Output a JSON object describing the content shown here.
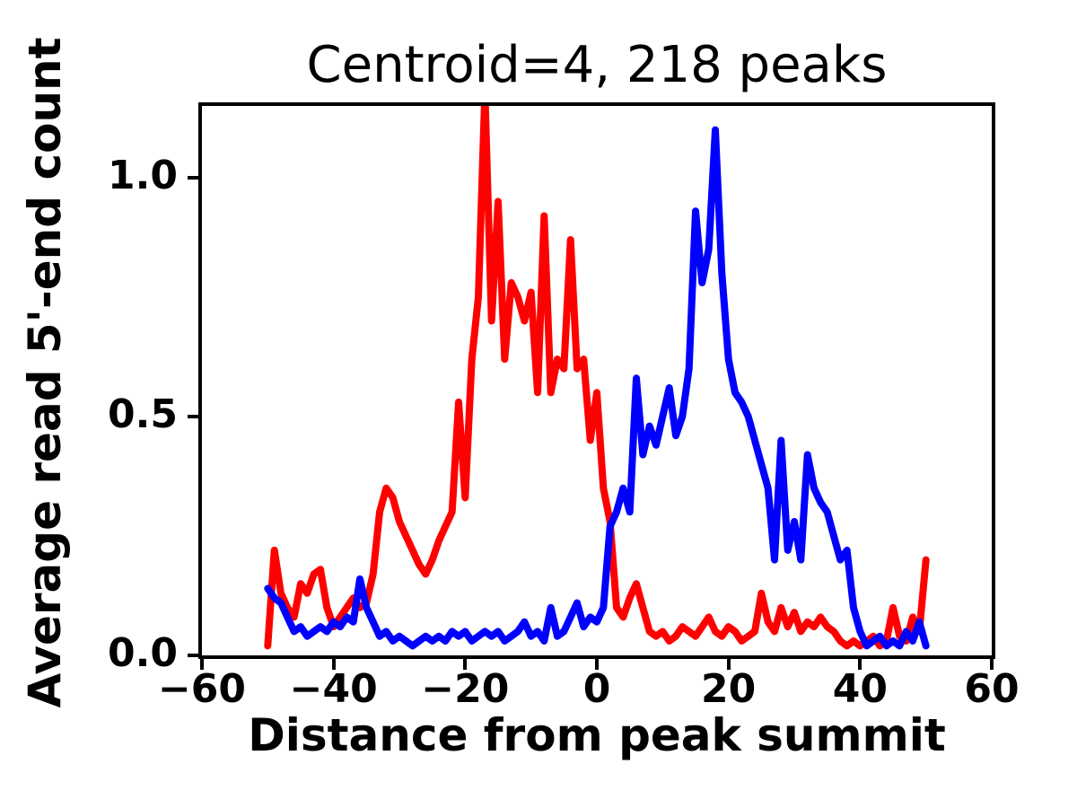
{
  "figure": {
    "background": "#ffffff",
    "spine_color": "#000000"
  },
  "chart_data": {
    "type": "line",
    "title": "Centroid=4, 218 peaks",
    "xlabel": "Distance from peak summit",
    "ylabel": "Average read 5'-end count",
    "xlim": [
      -60,
      60
    ],
    "ylim": [
      0,
      1.15
    ],
    "grid": false,
    "legend": null,
    "line_width": 8,
    "xticks": {
      "values": [
        -60,
        -40,
        -20,
        0,
        20,
        40,
        60
      ],
      "labels": [
        "−60",
        "−40",
        "−20",
        "0",
        "20",
        "40",
        "60"
      ]
    },
    "yticks": {
      "values": [
        0.0,
        0.5,
        1.0
      ],
      "labels": [
        "0.0",
        "0.5",
        "1.0"
      ]
    },
    "x": [
      -50,
      -49,
      -48,
      -47,
      -46,
      -45,
      -44,
      -43,
      -42,
      -41,
      -40,
      -39,
      -38,
      -37,
      -36,
      -35,
      -34,
      -33,
      -32,
      -31,
      -30,
      -29,
      -28,
      -27,
      -26,
      -25,
      -24,
      -23,
      -22,
      -21,
      -20,
      -19,
      -18,
      -17,
      -16,
      -15,
      -14,
      -13,
      -12,
      -11,
      -10,
      -9,
      -8,
      -7,
      -6,
      -5,
      -4,
      -3,
      -2,
      -1,
      0,
      1,
      2,
      3,
      4,
      5,
      6,
      7,
      8,
      9,
      10,
      11,
      12,
      13,
      14,
      15,
      16,
      17,
      18,
      19,
      20,
      21,
      22,
      23,
      24,
      25,
      26,
      27,
      28,
      29,
      30,
      31,
      32,
      33,
      34,
      35,
      36,
      37,
      38,
      39,
      40,
      41,
      42,
      43,
      44,
      45,
      46,
      47,
      48,
      49,
      50
    ],
    "series": [
      {
        "name": "red-line",
        "color": "#ff0000",
        "values": [
          0.02,
          0.22,
          0.13,
          0.1,
          0.08,
          0.15,
          0.13,
          0.17,
          0.18,
          0.1,
          0.06,
          0.08,
          0.1,
          0.12,
          0.1,
          0.11,
          0.17,
          0.3,
          0.35,
          0.33,
          0.28,
          0.25,
          0.22,
          0.19,
          0.17,
          0.2,
          0.24,
          0.27,
          0.3,
          0.53,
          0.33,
          0.62,
          0.75,
          1.18,
          0.7,
          0.95,
          0.62,
          0.78,
          0.75,
          0.7,
          0.76,
          0.55,
          0.92,
          0.55,
          0.62,
          0.6,
          0.87,
          0.6,
          0.62,
          0.45,
          0.55,
          0.35,
          0.28,
          0.1,
          0.08,
          0.12,
          0.15,
          0.1,
          0.05,
          0.04,
          0.05,
          0.03,
          0.04,
          0.06,
          0.05,
          0.04,
          0.06,
          0.08,
          0.05,
          0.04,
          0.06,
          0.05,
          0.03,
          0.04,
          0.05,
          0.13,
          0.07,
          0.05,
          0.1,
          0.06,
          0.09,
          0.05,
          0.07,
          0.06,
          0.08,
          0.06,
          0.05,
          0.03,
          0.02,
          0.03,
          0.02,
          0.03,
          0.04,
          0.02,
          0.03,
          0.1,
          0.04,
          0.03,
          0.08,
          0.05,
          0.2
        ]
      },
      {
        "name": "blue-line",
        "color": "#0000ff",
        "values": [
          0.14,
          0.12,
          0.11,
          0.08,
          0.05,
          0.06,
          0.04,
          0.05,
          0.06,
          0.05,
          0.07,
          0.06,
          0.08,
          0.07,
          0.16,
          0.1,
          0.07,
          0.04,
          0.05,
          0.03,
          0.04,
          0.03,
          0.02,
          0.03,
          0.04,
          0.03,
          0.04,
          0.03,
          0.05,
          0.04,
          0.05,
          0.03,
          0.04,
          0.05,
          0.04,
          0.05,
          0.03,
          0.04,
          0.05,
          0.07,
          0.04,
          0.05,
          0.03,
          0.1,
          0.04,
          0.05,
          0.08,
          0.11,
          0.06,
          0.08,
          0.07,
          0.1,
          0.27,
          0.3,
          0.35,
          0.3,
          0.58,
          0.42,
          0.48,
          0.44,
          0.5,
          0.56,
          0.46,
          0.5,
          0.6,
          0.93,
          0.78,
          0.85,
          1.1,
          0.8,
          0.62,
          0.55,
          0.53,
          0.5,
          0.45,
          0.4,
          0.35,
          0.2,
          0.45,
          0.22,
          0.28,
          0.2,
          0.42,
          0.35,
          0.32,
          0.3,
          0.25,
          0.2,
          0.22,
          0.1,
          0.05,
          0.02,
          0.03,
          0.04,
          0.02,
          0.03,
          0.02,
          0.05,
          0.03,
          0.07,
          0.02
        ]
      }
    ]
  }
}
